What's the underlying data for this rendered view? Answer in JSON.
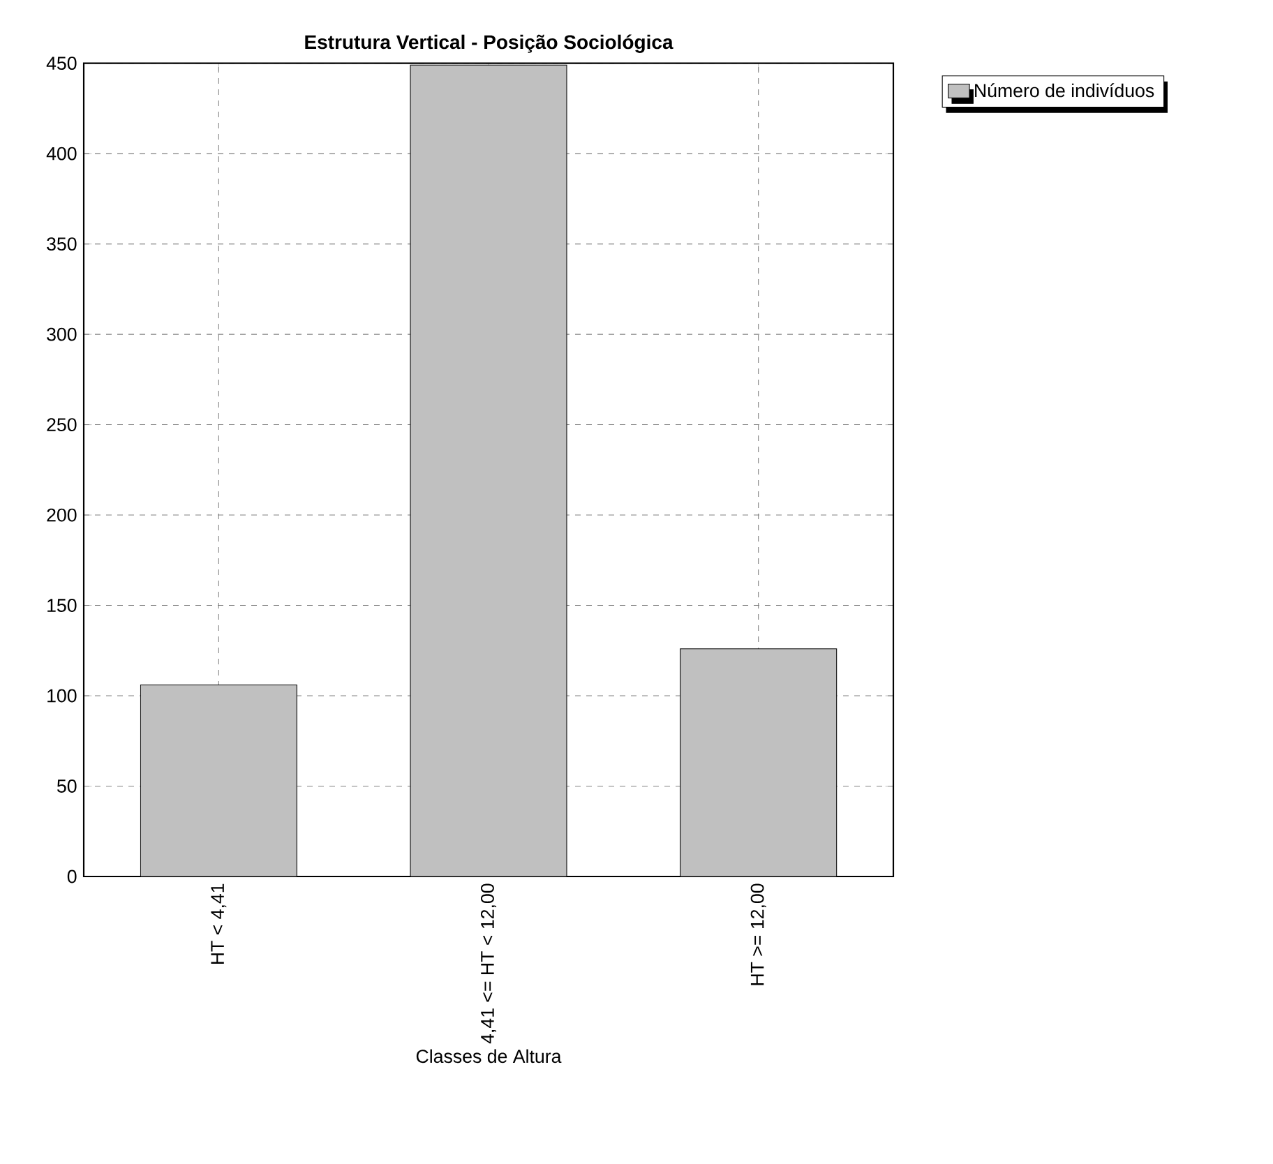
{
  "chart_data": {
    "type": "bar",
    "title": "Estrutura Vertical - Posição Sociológica",
    "xlabel": "Classes de Altura",
    "categories": [
      "HT < 4,41",
      "4,41 <= HT < 12,00",
      "HT >= 12,00"
    ],
    "series": [
      {
        "name": "Número de indivíduos",
        "color": "#c0c0c0",
        "values": [
          106,
          449,
          126
        ]
      }
    ],
    "ylim": [
      0,
      450
    ],
    "yticks": [
      0,
      50,
      100,
      150,
      200,
      250,
      300,
      350,
      400,
      450
    ],
    "grid": true,
    "legend": "top right"
  }
}
